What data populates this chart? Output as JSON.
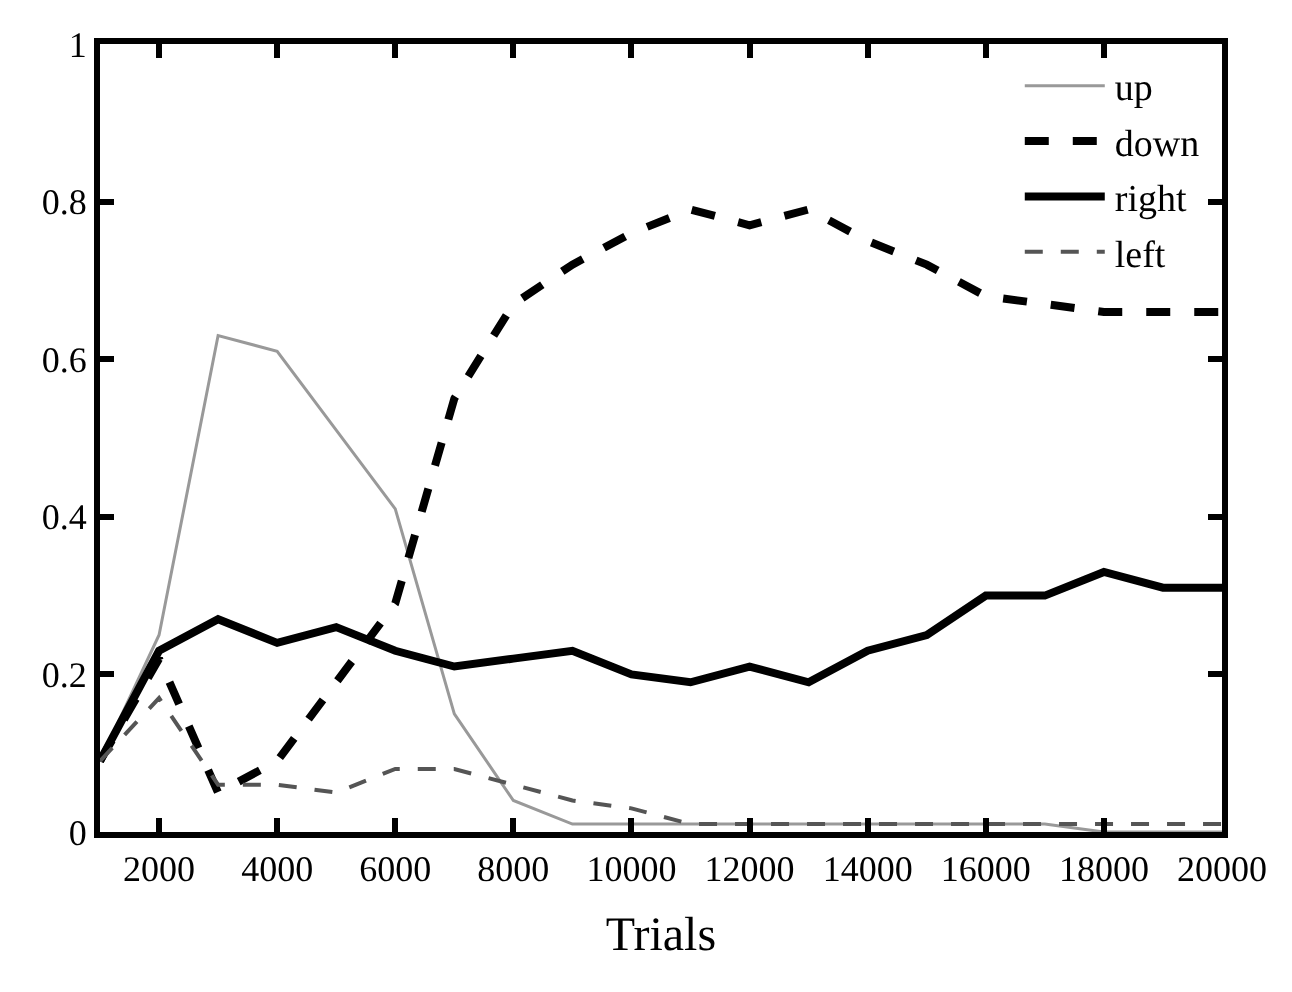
{
  "chart_data": {
    "type": "line",
    "xlabel": "Trials",
    "x": [
      1000,
      2000,
      3000,
      4000,
      5000,
      6000,
      7000,
      8000,
      9000,
      10000,
      11000,
      12000,
      13000,
      14000,
      15000,
      16000,
      17000,
      18000,
      19000,
      20000
    ],
    "series": [
      {
        "name": "up",
        "color": "#999999",
        "line_style": "solid",
        "values": [
          0.09,
          0.25,
          0.63,
          0.61,
          0.51,
          0.41,
          0.15,
          0.04,
          0.01,
          0.01,
          0.01,
          0.01,
          0.01,
          0.01,
          0.01,
          0.01,
          0.01,
          0.0,
          0.0,
          0.0
        ]
      },
      {
        "name": "down",
        "color": "#000000",
        "line_style": "dashed",
        "values": [
          0.09,
          0.22,
          0.05,
          0.09,
          0.19,
          0.29,
          0.55,
          0.67,
          0.72,
          0.76,
          0.79,
          0.77,
          0.79,
          0.75,
          0.72,
          0.68,
          0.67,
          0.66,
          0.66,
          0.66
        ]
      },
      {
        "name": "right",
        "color": "#000000",
        "line_style": "solid",
        "values": [
          0.09,
          0.23,
          0.27,
          0.24,
          0.26,
          0.23,
          0.21,
          0.22,
          0.23,
          0.2,
          0.19,
          0.21,
          0.19,
          0.23,
          0.25,
          0.3,
          0.3,
          0.33,
          0.31,
          0.31
        ]
      },
      {
        "name": "left",
        "color": "#555555",
        "line_style": "dashed",
        "values": [
          0.09,
          0.17,
          0.06,
          0.06,
          0.05,
          0.08,
          0.08,
          0.06,
          0.04,
          0.03,
          0.01,
          0.01,
          0.01,
          0.01,
          0.01,
          0.01,
          0.01,
          0.01,
          0.01,
          0.01
        ]
      }
    ],
    "xlim": [
      1000,
      20000
    ],
    "xticks": [
      2000,
      4000,
      6000,
      8000,
      10000,
      12000,
      14000,
      16000,
      18000,
      20000
    ],
    "ylim": [
      0,
      1
    ],
    "yticks": [
      0,
      0.2,
      0.4,
      0.6,
      0.8,
      1
    ],
    "legend": "top right",
    "marker": "none"
  }
}
